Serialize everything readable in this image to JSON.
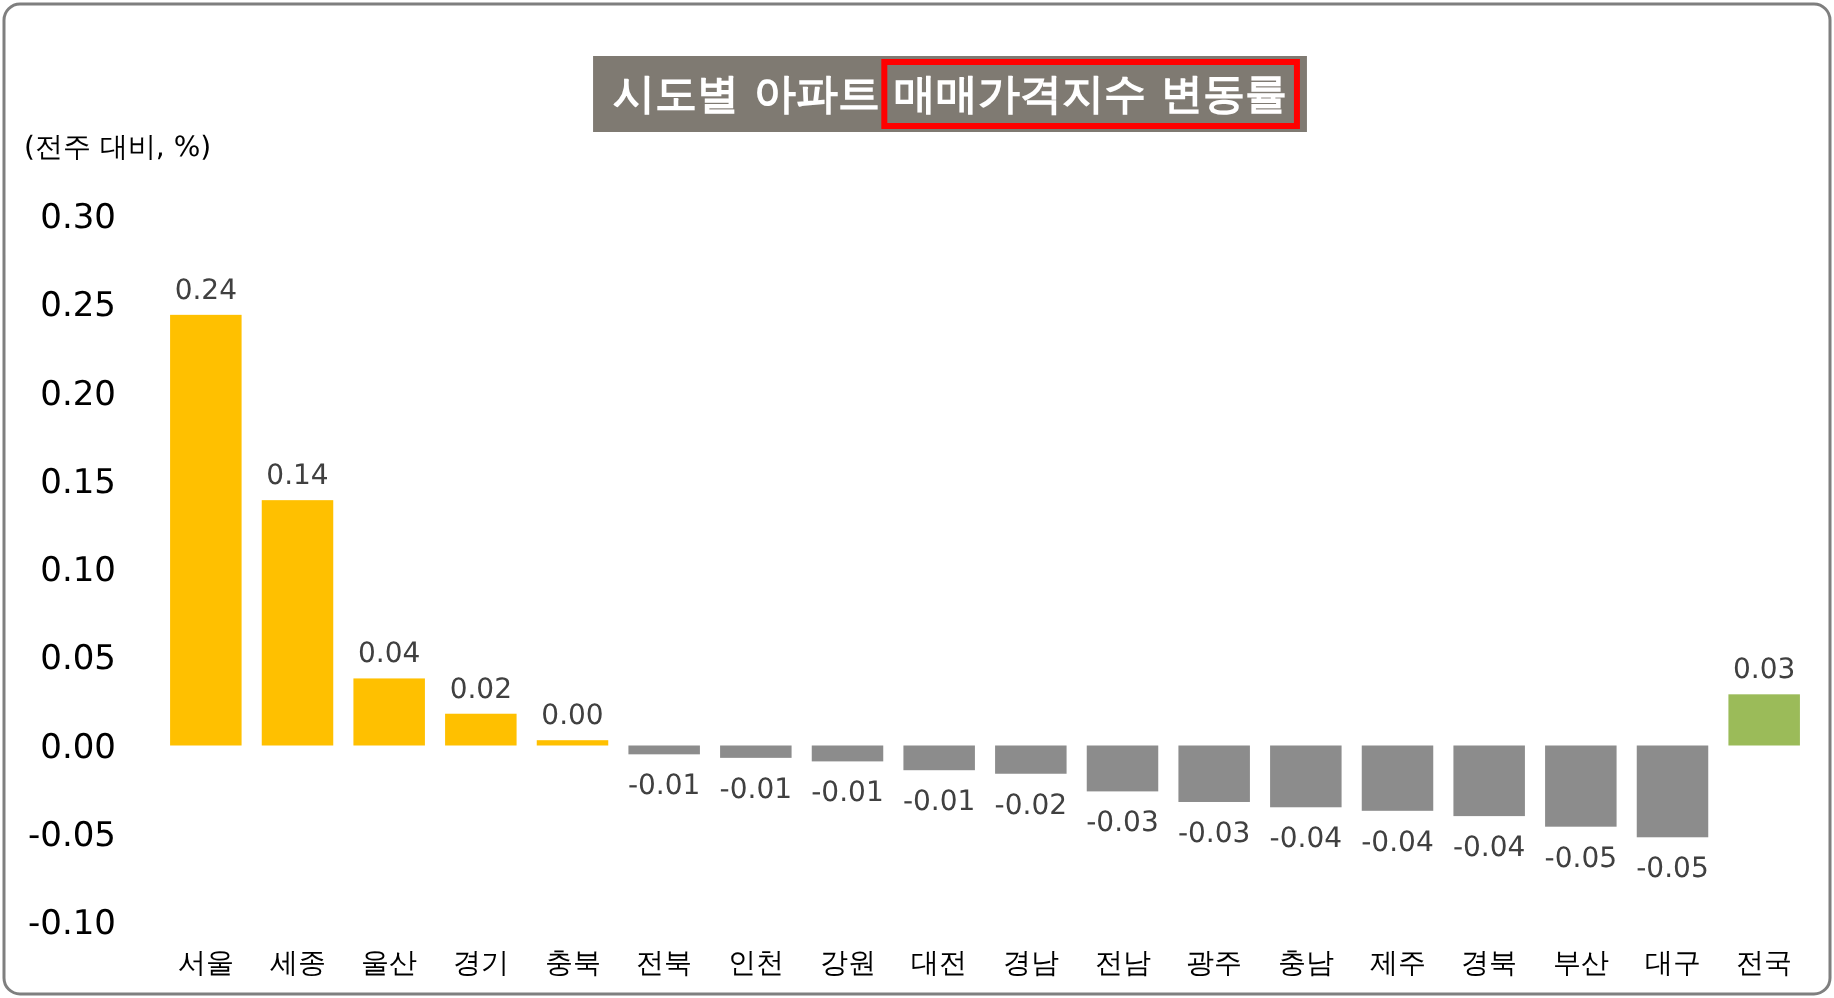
{
  "chart_data": {
    "type": "bar",
    "title": "시도별 아파트 매매가격지수 변동률",
    "ylabel": "(전주 대비, %)",
    "categories": [
      "서울",
      "세종",
      "울산",
      "경기",
      "충북",
      "전북",
      "인천",
      "강원",
      "대전",
      "경남",
      "전남",
      "광주",
      "충남",
      "제주",
      "경북",
      "부산",
      "대구",
      "전국"
    ],
    "values": [
      0.244,
      0.139,
      0.038,
      0.018,
      0.003,
      -0.005,
      -0.007,
      -0.009,
      -0.014,
      -0.016,
      -0.026,
      -0.032,
      -0.035,
      -0.037,
      -0.04,
      -0.046,
      -0.052,
      0.029
    ],
    "value_labels": [
      "0.24",
      "0.14",
      "0.04",
      "0.02",
      "0.00",
      "-0.01",
      "-0.01",
      "-0.01",
      "-0.01",
      "-0.02",
      "-0.03",
      "-0.03",
      "-0.04",
      "-0.04",
      "-0.04",
      "-0.05",
      "-0.05",
      "0.03"
    ],
    "colors": [
      "#ffc000",
      "#ffc000",
      "#ffc000",
      "#ffc000",
      "#ffc000",
      "#8c8c8c",
      "#8c8c8c",
      "#8c8c8c",
      "#8c8c8c",
      "#8c8c8c",
      "#8c8c8c",
      "#8c8c8c",
      "#8c8c8c",
      "#8c8c8c",
      "#8c8c8c",
      "#8c8c8c",
      "#8c8c8c",
      "#9bbb59"
    ],
    "ylim": [
      -0.1,
      0.3
    ],
    "yticks": [
      {
        "value": -0.1,
        "label": "-0.10"
      },
      {
        "value": -0.05,
        "label": "-0.05"
      },
      {
        "value": 0,
        "label": "0.00"
      },
      {
        "value": 0.05,
        "label": "0.05"
      },
      {
        "value": 0.1,
        "label": "0.10"
      },
      {
        "value": 0.15,
        "label": "0.15"
      },
      {
        "value": 0.2,
        "label": "0.20"
      },
      {
        "value": 0.25,
        "label": "0.25"
      },
      {
        "value": 0.3,
        "label": "0.30"
      }
    ],
    "grid": false
  }
}
